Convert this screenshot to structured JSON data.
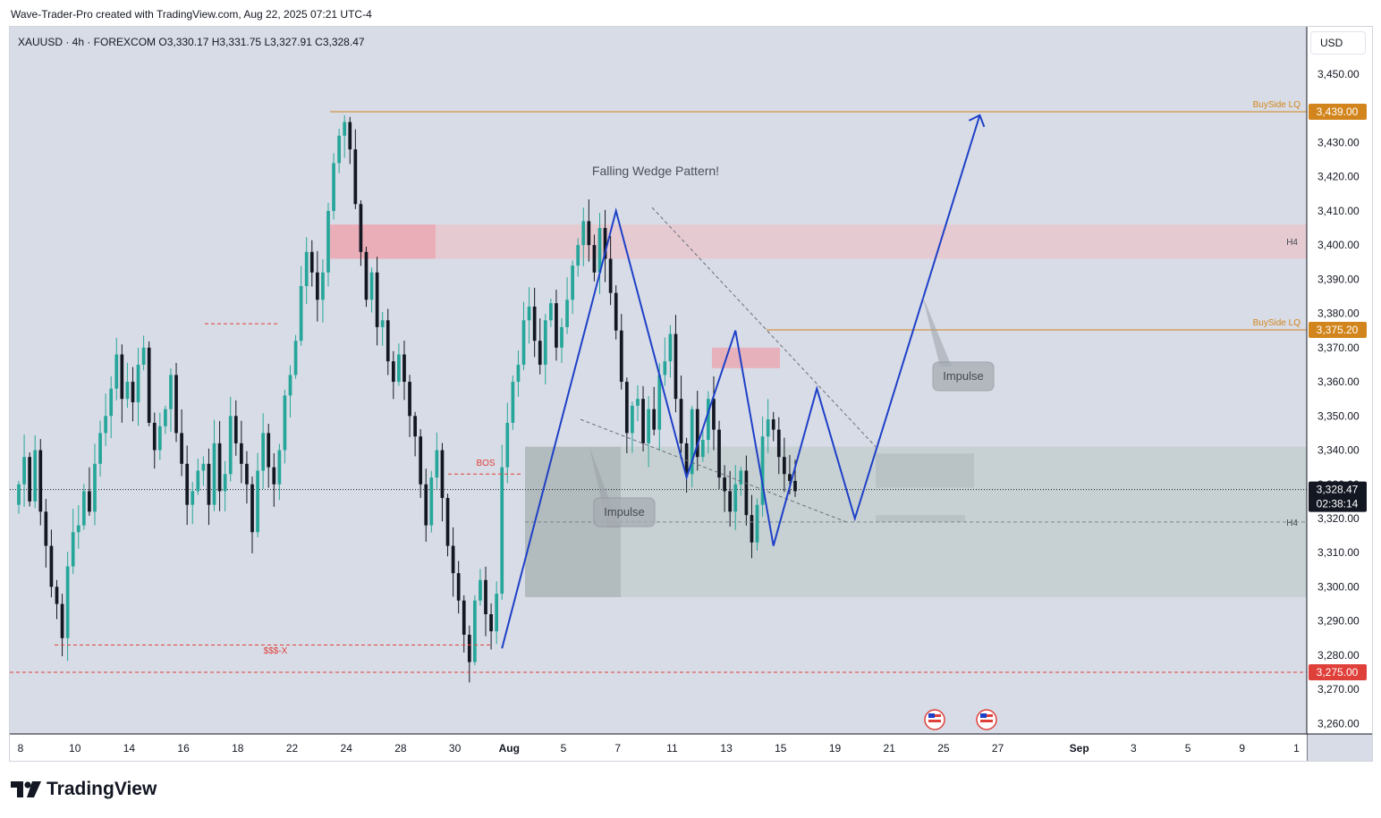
{
  "header": {
    "text": "Wave-Trader-Pro created with TradingView.com, Aug 22, 2025 07:21 UTC-4"
  },
  "symbol": {
    "text": "XAUUSD · 4h · FOREXCOM  O3,330.17  H3,331.75  L3,327.91  C3,328.47"
  },
  "currency": "USD",
  "footer": {
    "brand": "TradingView"
  },
  "colors": {
    "bull": "#26a69a",
    "bear": "#131722",
    "wave": "#1e40c8",
    "orange": "#d2851c",
    "red": "#e0403a",
    "bg": "#d8dce6"
  },
  "chart_data": {
    "type": "candlestick",
    "y_axis": {
      "ticks": [
        3260,
        3270,
        3280,
        3290,
        3300,
        3310,
        3320,
        3330,
        3340,
        3350,
        3360,
        3370,
        3380,
        3390,
        3400,
        3410,
        3420,
        3430,
        3440,
        3450
      ],
      "tick_labels": [
        "3,260.00",
        "3,270.00",
        "3,280.00",
        "3,290.00",
        "3,300.00",
        "3,310.00",
        "3,320.00",
        "3,330.00",
        "3,340.00",
        "3,350.00",
        "3,360.00",
        "3,370.00",
        "3,380.00",
        "3,390.00",
        "3,400.00",
        "3,410.00",
        "3,420.00",
        "3,430.00",
        "3,440.00",
        "3,450.00"
      ]
    },
    "x_axis": {
      "ticks": [
        {
          "label": "8",
          "bar": 0
        },
        {
          "label": "10",
          "bar": 10
        },
        {
          "label": "14",
          "bar": 20
        },
        {
          "label": "16",
          "bar": 30
        },
        {
          "label": "18",
          "bar": 40
        },
        {
          "label": "22",
          "bar": 50
        },
        {
          "label": "24",
          "bar": 60
        },
        {
          "label": "28",
          "bar": 70
        },
        {
          "label": "30",
          "bar": 80
        },
        {
          "label": "Aug",
          "bar": 90
        },
        {
          "label": "5",
          "bar": 100
        },
        {
          "label": "7",
          "bar": 110
        },
        {
          "label": "11",
          "bar": 120
        },
        {
          "label": "13",
          "bar": 130
        },
        {
          "label": "15",
          "bar": 140
        },
        {
          "label": "19",
          "bar": 150
        },
        {
          "label": "21",
          "bar": 160
        },
        {
          "label": "25",
          "bar": 170
        },
        {
          "label": "27",
          "bar": 180
        },
        {
          "label": "Sep",
          "bar": 195
        },
        {
          "label": "3",
          "bar": 205
        },
        {
          "label": "5",
          "bar": 215
        },
        {
          "label": "9",
          "bar": 225
        },
        {
          "label": "1",
          "bar": 235
        }
      ]
    },
    "closes": [
      3330,
      3338,
      3325,
      3340,
      3322,
      3312,
      3300,
      3295,
      3285,
      3306,
      3316,
      3318,
      3328,
      3322,
      3336,
      3345,
      3350,
      3358,
      3368,
      3355,
      3360,
      3354,
      3365,
      3370,
      3348,
      3340,
      3347,
      3352,
      3362,
      3345,
      3336,
      3324,
      3328,
      3334,
      3336,
      3324,
      3342,
      3328,
      3333,
      3350,
      3342,
      3336,
      3330,
      3316,
      3334,
      3345,
      3335,
      3330,
      3340,
      3356,
      3362,
      3372,
      3388,
      3398,
      3392,
      3384,
      3392,
      3410,
      3424,
      3432,
      3436,
      3428,
      3412,
      3398,
      3384,
      3392,
      3376,
      3378,
      3366,
      3360,
      3368,
      3360,
      3350,
      3344,
      3330,
      3318,
      3332,
      3340,
      3326,
      3312,
      3304,
      3296,
      3286,
      3278,
      3296,
      3302,
      3292,
      3287,
      3298,
      3335,
      3348,
      3360,
      3365,
      3378,
      3382,
      3372,
      3365,
      3378,
      3383,
      3370,
      3376,
      3384,
      3394,
      3400,
      3407,
      3400,
      3392,
      3405,
      3396,
      3386,
      3375,
      3360,
      3345,
      3353,
      3355,
      3342,
      3352,
      3346,
      3362,
      3366,
      3374,
      3355,
      3342,
      3333,
      3352,
      3338,
      3343,
      3355,
      3346,
      3332,
      3328,
      3322,
      3330,
      3334,
      3321,
      3313,
      3324,
      3344,
      3349,
      3346,
      3338,
      3333,
      3331,
      3328
    ],
    "annotations": {
      "title_text": "Falling Wedge Pattern!",
      "impulse_label_1": "Impulse",
      "impulse_label_2": "Impulse",
      "bos_label": "BOS",
      "sss_label": "$$$-X",
      "buyside_label_1": "BuySide LQ",
      "buyside_label_2": "BuySide LQ",
      "h4_label_1": "H4",
      "h4_label_2": "H4",
      "levels": [
        {
          "price": 3439.0,
          "label": "3,439.00",
          "color": "#d2851c"
        },
        {
          "price": 3375.2,
          "label": "3,375.20",
          "color": "#d2851c"
        },
        {
          "price": 3275.0,
          "label": "3,275.00",
          "color": "#e0403a"
        }
      ],
      "last_price": {
        "price": 3328.47,
        "label": "3,328.47",
        "countdown": "02:38:14"
      },
      "wave_path": [
        [
          89,
          3282
        ],
        [
          110,
          3410
        ],
        [
          123,
          3332
        ],
        [
          132,
          3375
        ],
        [
          139,
          3312
        ],
        [
          147,
          3358
        ],
        [
          154,
          3320
        ],
        [
          177,
          3438
        ]
      ]
    }
  }
}
